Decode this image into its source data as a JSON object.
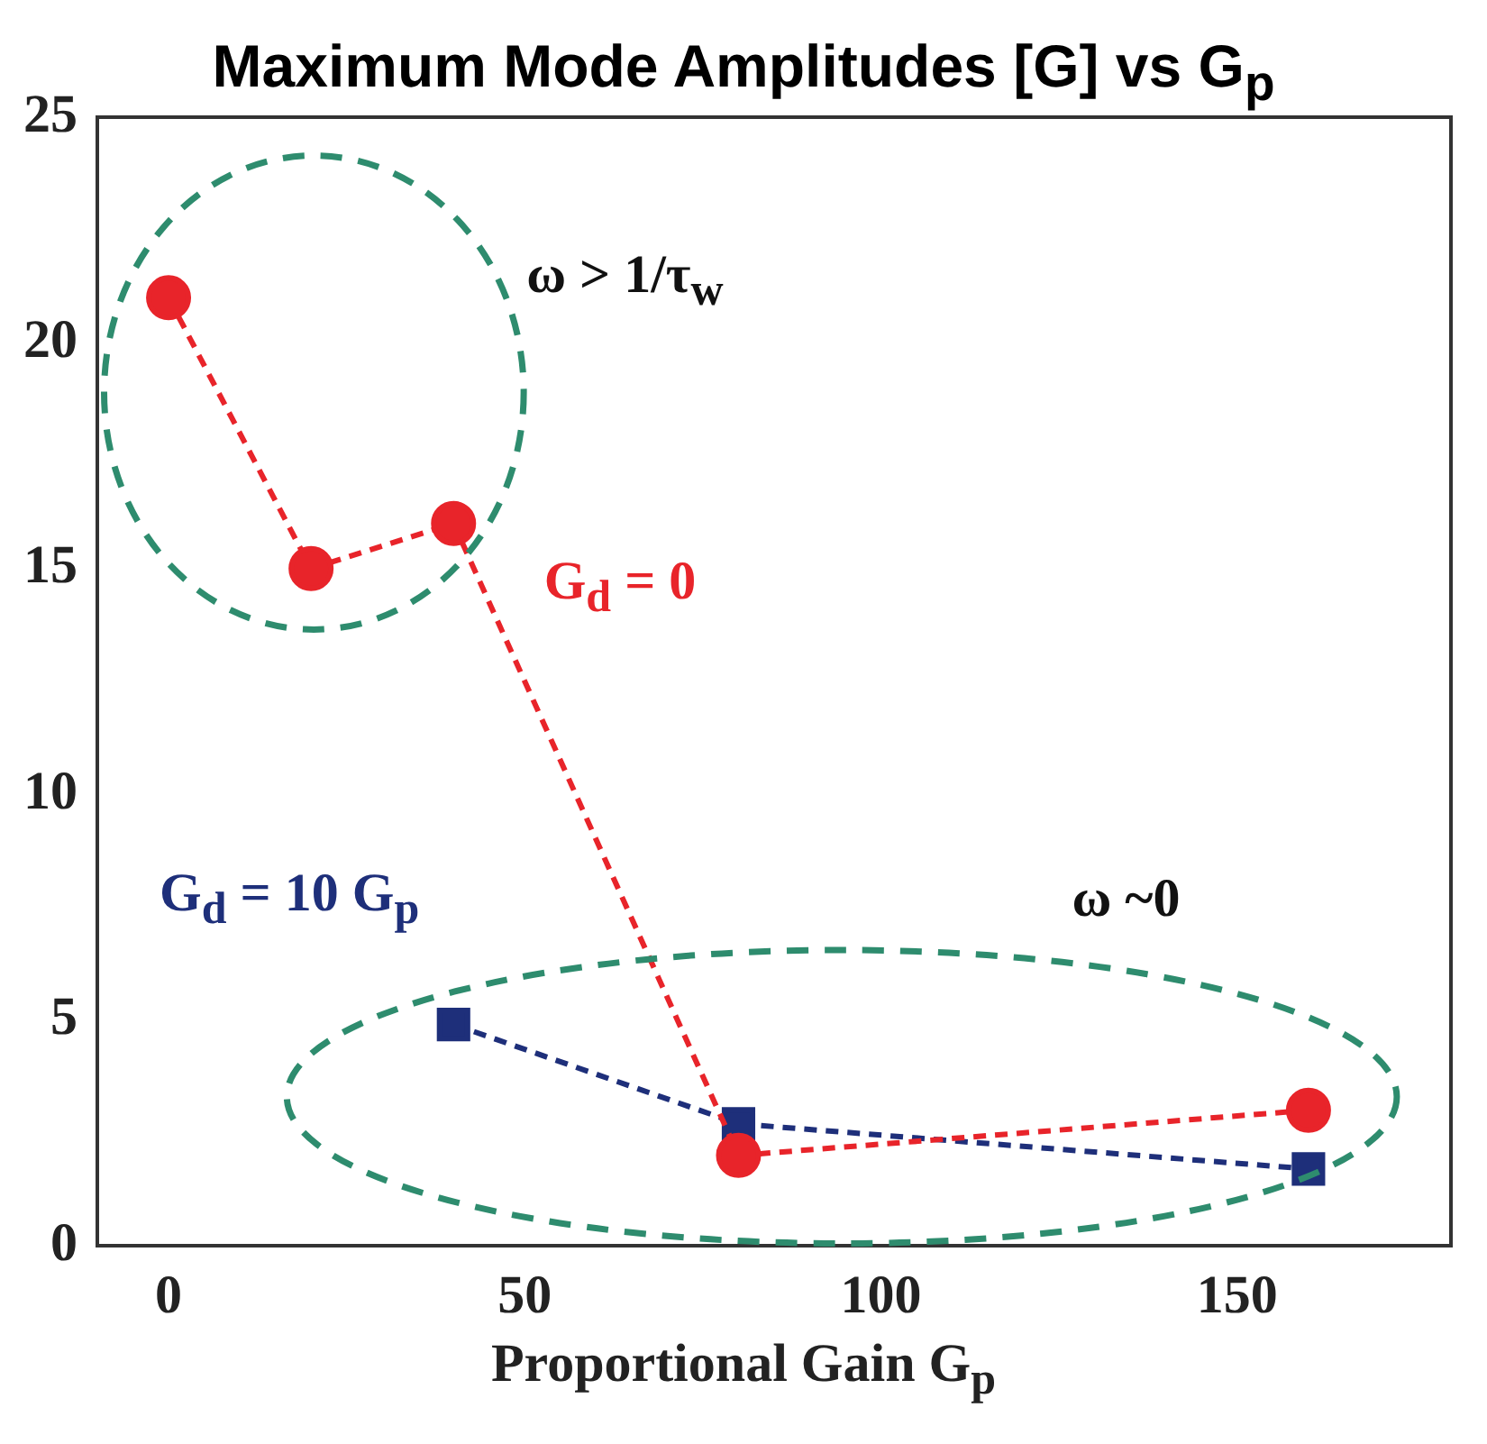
{
  "chart_data": {
    "type": "line",
    "title": "Maximum Mode Amplitudes [G] vs G$_{p}$",
    "xlabel": "Proportional Gain G$_{p}$",
    "series": [
      {
        "name": "G$_{d}$ = 0",
        "color": "#e8242a",
        "marker": "circle",
        "x": [
          0,
          20,
          40,
          80,
          160
        ],
        "values": [
          21,
          15,
          16,
          2,
          3
        ]
      },
      {
        "name": "G$_{d}$ = 10 G$_{p}$",
        "color": "#1e2f7a",
        "marker": "square",
        "x": [
          40,
          80,
          160
        ],
        "values": [
          4.9,
          2.7,
          1.7
        ]
      }
    ],
    "annotations": [
      "ω > 1/τ$_{w}$",
      "ω ~0"
    ],
    "line_style": "dashed",
    "grid": false,
    "legend": false,
    "xlim": [
      -10,
      180
    ],
    "xticks": [
      0,
      50,
      100,
      150
    ],
    "ylim": [
      0,
      25
    ],
    "yticks": [
      0,
      5,
      10,
      15,
      20,
      25
    ]
  }
}
